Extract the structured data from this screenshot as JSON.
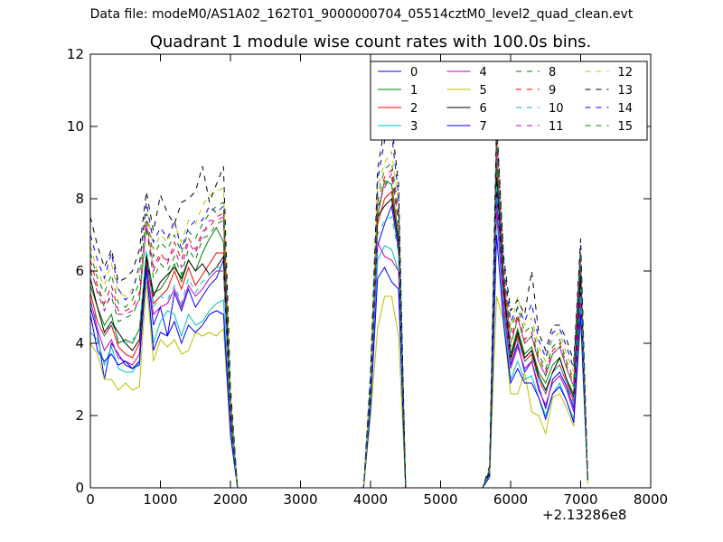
{
  "figure": {
    "suptitle": "Data file: modeM0/AS1A02_162T01_9000000704_05514cztM0_level2_quad_clean.evt"
  },
  "chart_data": {
    "type": "line",
    "title": "Quadrant 1 module wise count rates with 100.0s bins.",
    "xlabel": "",
    "ylabel": "",
    "x_offset_label": "+2.13286e8",
    "xlim": [
      0,
      8000
    ],
    "ylim": [
      0,
      12
    ],
    "xticks": [
      0,
      1000,
      2000,
      3000,
      4000,
      5000,
      6000,
      7000,
      8000
    ],
    "yticks": [
      0,
      2,
      4,
      6,
      8,
      10,
      12
    ],
    "xtick_labels": [
      "0",
      "1000",
      "2000",
      "3000",
      "4000",
      "5000",
      "6000",
      "7000",
      "8000"
    ],
    "ytick_labels": [
      "0",
      "2",
      "4",
      "6",
      "8",
      "10",
      "12"
    ],
    "grid": false,
    "legend_placement": "top-right",
    "legend_columns": 4,
    "x": [
      0,
      100,
      200,
      300,
      400,
      500,
      600,
      700,
      800,
      900,
      1000,
      1100,
      1200,
      1300,
      1400,
      1500,
      1600,
      1700,
      1800,
      1900,
      2000,
      2100,
      3900,
      4000,
      4100,
      4200,
      4300,
      4400,
      4500,
      5600,
      5700,
      5800,
      5900,
      6000,
      6100,
      6200,
      6300,
      6400,
      6500,
      6600,
      6700,
      6800,
      6900,
      7000,
      7100
    ],
    "series": [
      {
        "name": "0",
        "color": "#0000ff",
        "dash": "solid",
        "values": [
          5.0,
          4.3,
          3.0,
          4.0,
          3.7,
          3.4,
          3.3,
          3.4,
          6.2,
          4.5,
          5.0,
          4.2,
          5.4,
          4.9,
          5.5,
          5.0,
          5.3,
          5.6,
          5.8,
          6.3,
          1.8,
          0.0,
          0.0,
          2.4,
          6.7,
          7.3,
          7.8,
          6.6,
          0.0,
          0.0,
          0.4,
          8.2,
          5.3,
          3.4,
          4.0,
          3.2,
          3.5,
          2.8,
          2.2,
          3.0,
          3.2,
          2.8,
          2.2,
          5.6,
          0.2
        ]
      },
      {
        "name": "1",
        "color": "#008000",
        "dash": "solid",
        "values": [
          5.6,
          5.0,
          4.5,
          4.8,
          4.0,
          4.1,
          4.0,
          4.4,
          6.5,
          5.4,
          5.5,
          5.8,
          6.2,
          5.7,
          6.3,
          6.0,
          6.5,
          6.9,
          7.2,
          6.8,
          2.2,
          0.0,
          0.0,
          2.6,
          7.5,
          8.5,
          8.4,
          7.0,
          0.0,
          0.0,
          0.4,
          9.0,
          5.6,
          3.7,
          4.4,
          3.7,
          3.9,
          3.2,
          2.9,
          3.4,
          3.6,
          3.0,
          2.6,
          6.1,
          0.2
        ]
      },
      {
        "name": "2",
        "color": "#ff0000",
        "dash": "solid",
        "values": [
          5.4,
          4.6,
          4.2,
          4.5,
          3.9,
          3.7,
          3.6,
          4.0,
          6.3,
          5.1,
          5.3,
          5.5,
          6.0,
          5.5,
          6.1,
          5.6,
          5.9,
          6.2,
          6.5,
          6.5,
          2.0,
          0.0,
          0.0,
          2.5,
          7.3,
          8.0,
          8.2,
          6.8,
          0.0,
          0.0,
          0.4,
          8.6,
          5.4,
          3.5,
          4.2,
          3.5,
          3.7,
          3.0,
          2.6,
          3.2,
          3.4,
          2.9,
          2.4,
          5.8,
          0.2
        ]
      },
      {
        "name": "3",
        "color": "#00bfbf",
        "dash": "solid",
        "values": [
          4.3,
          4.1,
          3.4,
          3.9,
          3.3,
          3.2,
          3.2,
          3.5,
          6.0,
          4.0,
          4.6,
          4.9,
          4.8,
          4.2,
          4.8,
          4.5,
          4.6,
          4.9,
          5.1,
          5.2,
          1.6,
          0.0,
          0.0,
          2.3,
          6.3,
          6.7,
          6.6,
          6.0,
          0.0,
          0.0,
          0.4,
          7.6,
          4.8,
          3.0,
          3.5,
          3.0,
          3.1,
          2.5,
          2.0,
          2.6,
          2.9,
          2.4,
          1.9,
          5.0,
          0.2
        ]
      },
      {
        "name": "4",
        "color": "#bf00bf",
        "dash": "solid",
        "values": [
          5.2,
          4.4,
          3.8,
          4.1,
          3.6,
          3.5,
          3.4,
          3.7,
          6.1,
          4.8,
          5.0,
          5.1,
          5.5,
          5.0,
          5.6,
          5.3,
          5.5,
          5.8,
          6.0,
          6.0,
          1.9,
          0.0,
          0.0,
          2.4,
          6.8,
          6.4,
          6.3,
          6.0,
          0.0,
          0.0,
          0.4,
          7.8,
          5.0,
          3.3,
          3.9,
          3.3,
          3.5,
          2.7,
          2.3,
          2.9,
          3.1,
          2.7,
          2.1,
          5.3,
          0.2
        ]
      },
      {
        "name": "5",
        "color": "#bfbf00",
        "dash": "solid",
        "values": [
          4.0,
          3.7,
          3.0,
          3.0,
          2.7,
          2.9,
          2.7,
          2.8,
          5.7,
          3.5,
          4.1,
          3.9,
          4.1,
          3.7,
          3.8,
          4.3,
          4.2,
          4.3,
          4.2,
          4.4,
          1.4,
          0.0,
          0.0,
          2.0,
          4.4,
          5.3,
          5.3,
          4.2,
          0.0,
          0.0,
          0.3,
          5.3,
          4.6,
          2.6,
          2.6,
          3.2,
          2.1,
          2.0,
          1.5,
          2.5,
          2.6,
          2.2,
          1.7,
          4.6,
          0.1
        ]
      },
      {
        "name": "6",
        "color": "#000000",
        "dash": "solid",
        "values": [
          5.8,
          5.0,
          4.3,
          4.6,
          4.3,
          4.0,
          3.8,
          4.1,
          6.4,
          5.3,
          5.7,
          5.9,
          6.1,
          5.8,
          6.3,
          6.0,
          6.2,
          5.9,
          6.1,
          6.4,
          2.1,
          0.0,
          0.0,
          2.6,
          7.5,
          7.8,
          8.0,
          6.8,
          0.0,
          0.0,
          0.4,
          8.6,
          5.6,
          3.6,
          4.3,
          3.6,
          3.8,
          3.1,
          2.7,
          3.2,
          3.6,
          3.0,
          2.5,
          5.9,
          0.2
        ]
      },
      {
        "name": "7",
        "color": "#0000ff",
        "dash": "solid",
        "values": [
          4.8,
          3.8,
          3.5,
          3.7,
          3.4,
          3.5,
          3.3,
          3.5,
          6.1,
          3.8,
          4.3,
          4.2,
          4.6,
          4.0,
          4.5,
          4.3,
          4.5,
          4.8,
          4.9,
          4.8,
          1.5,
          0.0,
          0.0,
          2.2,
          5.8,
          6.1,
          5.7,
          5.5,
          0.0,
          0.0,
          0.3,
          7.0,
          4.5,
          2.9,
          3.3,
          2.9,
          2.9,
          2.5,
          1.9,
          2.6,
          2.8,
          2.4,
          1.8,
          4.8,
          0.2
        ]
      },
      {
        "name": "8",
        "color": "#008000",
        "dash": "dashed",
        "values": [
          6.0,
          5.5,
          5.0,
          5.3,
          4.6,
          4.7,
          4.8,
          5.2,
          7.2,
          5.8,
          6.2,
          6.0,
          6.4,
          5.9,
          6.6,
          6.3,
          6.9,
          7.0,
          7.3,
          7.4,
          2.3,
          0.0,
          0.0,
          2.8,
          7.7,
          8.4,
          8.6,
          7.3,
          0.0,
          0.0,
          0.5,
          9.5,
          5.8,
          3.9,
          4.7,
          4.0,
          4.2,
          3.5,
          3.1,
          3.7,
          3.9,
          3.3,
          2.8,
          6.4,
          0.2
        ]
      },
      {
        "name": "9",
        "color": "#ff0000",
        "dash": "dashed",
        "values": [
          6.3,
          5.6,
          5.1,
          5.6,
          4.9,
          4.9,
          5.0,
          5.4,
          7.4,
          6.1,
          6.5,
          6.2,
          6.8,
          6.3,
          6.9,
          6.6,
          7.1,
          7.2,
          7.5,
          7.6,
          2.4,
          0.0,
          0.0,
          2.9,
          7.9,
          8.6,
          8.8,
          7.5,
          0.0,
          0.0,
          0.5,
          9.6,
          5.9,
          4.1,
          4.8,
          4.1,
          4.3,
          3.6,
          3.2,
          3.8,
          4.0,
          3.4,
          2.9,
          6.5,
          0.2
        ]
      },
      {
        "name": "10",
        "color": "#00bfbf",
        "dash": "dashed",
        "values": [
          5.1,
          4.6,
          4.2,
          4.6,
          4.1,
          4.0,
          4.1,
          4.3,
          6.6,
          5.0,
          5.3,
          5.2,
          5.6,
          5.1,
          5.8,
          5.4,
          5.7,
          5.9,
          6.1,
          6.1,
          1.9,
          0.0,
          0.0,
          2.5,
          7.0,
          7.4,
          7.5,
          6.5,
          0.0,
          0.0,
          0.4,
          8.4,
          5.2,
          3.5,
          4.1,
          3.5,
          3.6,
          3.0,
          2.6,
          3.2,
          3.4,
          2.9,
          2.3,
          5.5,
          0.2
        ]
      },
      {
        "name": "11",
        "color": "#bf00bf",
        "dash": "dashed",
        "values": [
          6.1,
          5.4,
          4.9,
          5.4,
          4.8,
          4.8,
          4.9,
          5.2,
          7.3,
          6.0,
          6.4,
          6.3,
          6.6,
          6.1,
          6.8,
          6.5,
          7.0,
          7.4,
          7.4,
          7.5,
          2.3,
          0.0,
          0.0,
          2.8,
          7.8,
          8.3,
          8.7,
          7.4,
          0.0,
          0.0,
          0.5,
          9.4,
          5.8,
          4.0,
          4.7,
          4.0,
          4.2,
          3.5,
          3.1,
          3.7,
          3.9,
          3.3,
          2.8,
          6.3,
          0.2
        ]
      },
      {
        "name": "12",
        "color": "#bfbf00",
        "dash": "dashed",
        "values": [
          6.7,
          6.0,
          5.6,
          6.2,
          5.4,
          5.3,
          5.5,
          6.0,
          7.8,
          6.6,
          7.0,
          6.8,
          7.3,
          6.8,
          7.4,
          7.3,
          7.8,
          8.1,
          8.2,
          8.3,
          2.6,
          0.0,
          0.0,
          3.0,
          8.3,
          9.0,
          9.3,
          7.9,
          0.0,
          0.0,
          0.5,
          10.3,
          6.2,
          4.4,
          5.3,
          4.5,
          4.7,
          3.9,
          3.5,
          4.1,
          4.3,
          3.7,
          3.2,
          6.6,
          0.2
        ]
      },
      {
        "name": "13",
        "color": "#000000",
        "dash": "dashed",
        "values": [
          7.5,
          6.7,
          6.1,
          6.6,
          5.7,
          5.8,
          6.0,
          6.6,
          8.2,
          7.1,
          8.1,
          7.6,
          7.3,
          7.9,
          8.0,
          8.2,
          8.9,
          7.9,
          8.4,
          8.9,
          2.8,
          0.0,
          0.0,
          3.2,
          8.8,
          10.0,
          10.1,
          8.4,
          0.0,
          0.0,
          0.6,
          10.2,
          6.4,
          4.9,
          5.2,
          4.8,
          6.0,
          4.3,
          3.8,
          4.5,
          4.5,
          4.1,
          3.5,
          6.9,
          0.2
        ]
      },
      {
        "name": "14",
        "color": "#0000ff",
        "dash": "dashed",
        "values": [
          7.0,
          6.3,
          5.8,
          6.5,
          5.5,
          5.2,
          5.4,
          6.2,
          7.9,
          6.8,
          7.2,
          6.9,
          7.4,
          6.6,
          7.2,
          7.4,
          7.4,
          7.8,
          7.6,
          7.8,
          2.5,
          0.0,
          0.0,
          3.1,
          8.5,
          9.6,
          9.8,
          8.1,
          0.0,
          0.0,
          0.5,
          9.9,
          6.3,
          4.6,
          5.0,
          4.6,
          5.1,
          4.1,
          3.6,
          4.3,
          4.4,
          3.9,
          3.3,
          6.7,
          0.2
        ]
      },
      {
        "name": "15",
        "color": "#008000",
        "dash": "dashed",
        "values": [
          6.5,
          5.8,
          5.4,
          5.9,
          5.1,
          5.0,
          5.2,
          5.7,
          7.6,
          6.4,
          6.8,
          6.6,
          7.0,
          6.5,
          7.1,
          6.9,
          7.3,
          7.6,
          7.8,
          7.9,
          2.5,
          0.0,
          0.0,
          2.9,
          8.1,
          8.8,
          9.0,
          7.7,
          0.0,
          0.0,
          0.5,
          9.8,
          6.0,
          4.3,
          5.0,
          4.3,
          4.5,
          3.7,
          3.3,
          3.9,
          4.1,
          3.5,
          3.0,
          6.5,
          0.2
        ]
      }
    ]
  }
}
